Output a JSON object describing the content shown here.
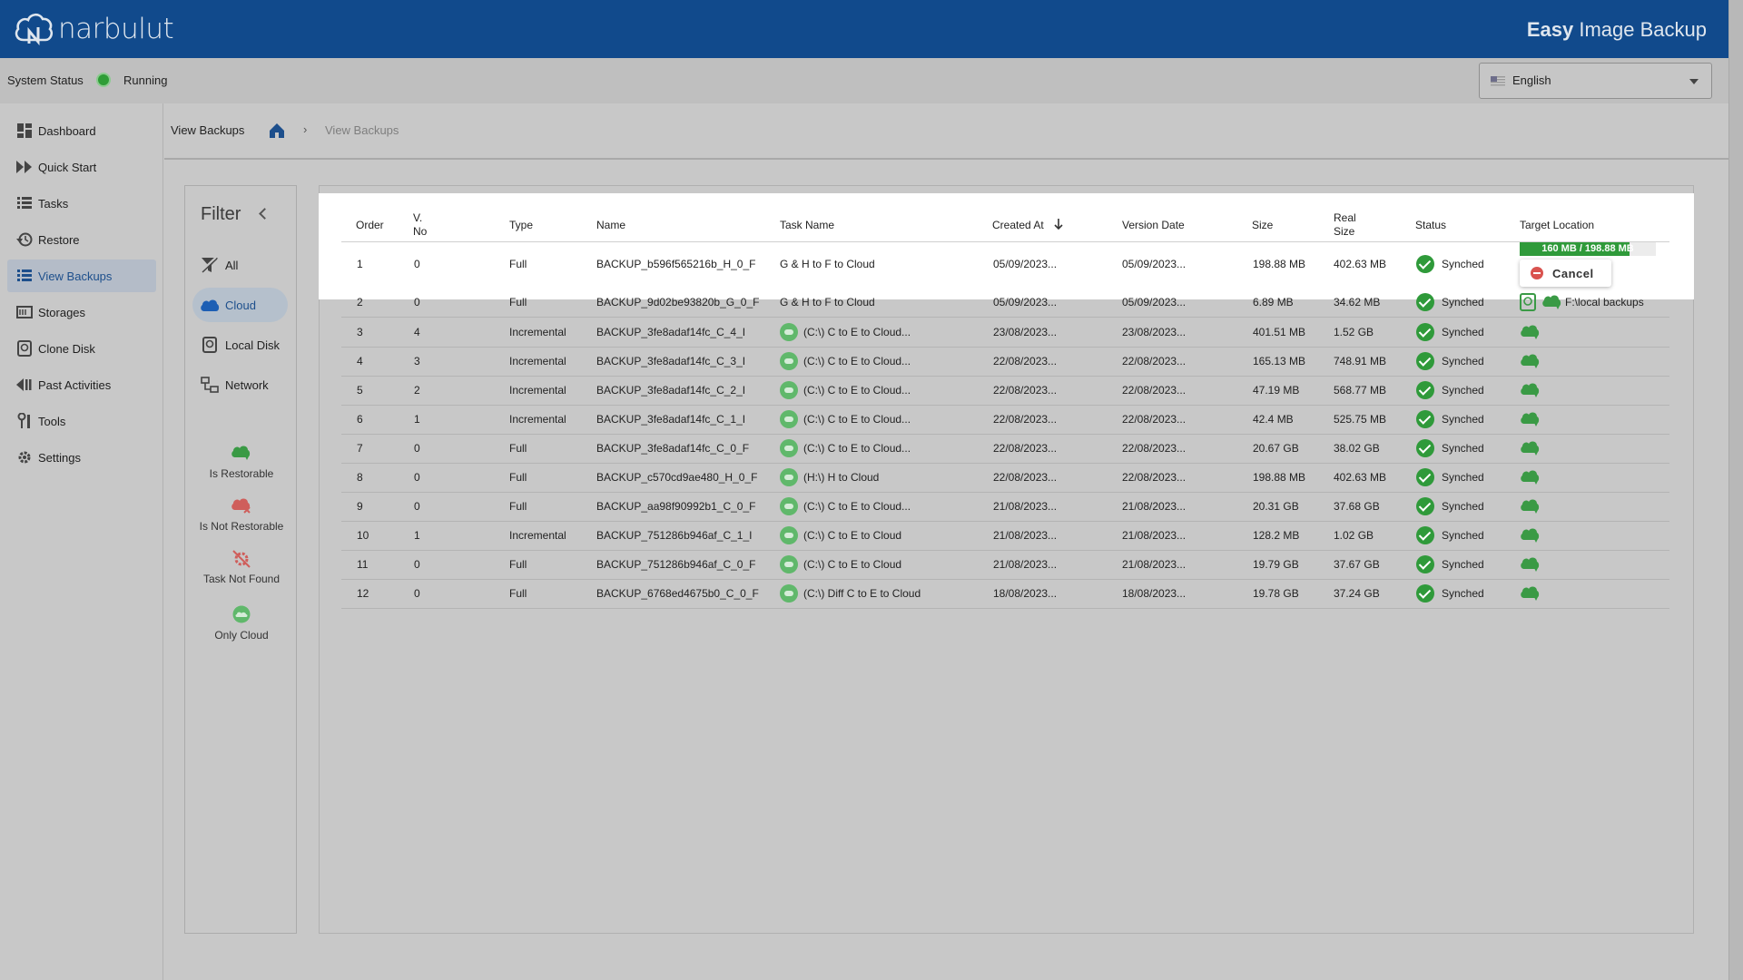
{
  "header": {
    "logo_text": "narbulut",
    "app_title_bold": "Easy",
    "app_title_rest": " Image Backup"
  },
  "status": {
    "label": "System Status",
    "value": "Running",
    "color": "#2e9d36"
  },
  "language": {
    "selected": "English"
  },
  "sidebar": {
    "items": [
      {
        "label": "Dashboard",
        "icon": "dashboard-icon"
      },
      {
        "label": "Quick Start",
        "icon": "fast-forward-icon"
      },
      {
        "label": "Tasks",
        "icon": "list-icon"
      },
      {
        "label": "Restore",
        "icon": "restore-icon"
      },
      {
        "label": "View Backups",
        "icon": "backups-list-icon"
      },
      {
        "label": "Storages",
        "icon": "storage-icon"
      },
      {
        "label": "Clone Disk",
        "icon": "disk-icon"
      },
      {
        "label": "Past Activities",
        "icon": "history-icon"
      },
      {
        "label": "Tools",
        "icon": "tools-icon"
      },
      {
        "label": "Settings",
        "icon": "gear-icon"
      }
    ],
    "active": "View Backups"
  },
  "breadcrumb": {
    "title": "View Backups",
    "separator": "›",
    "current": "View Backups"
  },
  "filter": {
    "title": "Filter",
    "items": [
      {
        "label": "All",
        "icon": "filter-off-icon"
      },
      {
        "label": "Cloud",
        "icon": "cloud-icon"
      },
      {
        "label": "Local Disk",
        "icon": "local-disk-icon"
      },
      {
        "label": "Network",
        "icon": "network-icon"
      }
    ],
    "active": "Cloud",
    "legend": [
      {
        "label": "Is Restorable",
        "icon": "cloud-restorable-icon"
      },
      {
        "label": "Is Not Restorable",
        "icon": "cloud-not-restorable-icon"
      },
      {
        "label": "Task Not Found",
        "icon": "task-not-found-icon"
      },
      {
        "label": "Only Cloud",
        "icon": "only-cloud-icon"
      }
    ]
  },
  "table": {
    "headers": {
      "order": "Order",
      "vno_1": "V.",
      "vno_2": "No",
      "type": "Type",
      "name": "Name",
      "task_name": "Task Name",
      "created_at": "Created At",
      "version_date": "Version Date",
      "size": "Size",
      "real_size_1": "Real",
      "real_size_2": "Size",
      "status": "Status",
      "target_location": "Target Location"
    },
    "rows": [
      {
        "order": "1",
        "vno": "0",
        "type": "Full",
        "name": "BACKUP_b596f565216b_H_0_F",
        "task": "G & H to F to Cloud",
        "created": "05/09/2023...",
        "version": "05/09/2023...",
        "size": "198.88 MB",
        "real_size": "402.63 MB",
        "status": "Synched"
      },
      {
        "order": "2",
        "vno": "0",
        "type": "Full",
        "name": "BACKUP_9d02be93820b_G_0_F",
        "task": "G & H to F to Cloud",
        "created": "05/09/2023...",
        "version": "05/09/2023...",
        "size": "6.89 MB",
        "real_size": "34.62 MB",
        "status": "Synched",
        "target": "F:\\local backups"
      },
      {
        "order": "3",
        "vno": "4",
        "type": "Incremental",
        "name": "BACKUP_3fe8adaf14fc_C_4_I",
        "task": "(C:\\) C to E to Cloud...",
        "created": "23/08/2023...",
        "version": "23/08/2023...",
        "size": "401.51 MB",
        "real_size": "1.52 GB",
        "status": "Synched"
      },
      {
        "order": "4",
        "vno": "3",
        "type": "Incremental",
        "name": "BACKUP_3fe8adaf14fc_C_3_I",
        "task": "(C:\\) C to E to Cloud...",
        "created": "22/08/2023...",
        "version": "22/08/2023...",
        "size": "165.13 MB",
        "real_size": "748.91 MB",
        "status": "Synched"
      },
      {
        "order": "5",
        "vno": "2",
        "type": "Incremental",
        "name": "BACKUP_3fe8adaf14fc_C_2_I",
        "task": "(C:\\) C to E to Cloud...",
        "created": "22/08/2023...",
        "version": "22/08/2023...",
        "size": "47.19 MB",
        "real_size": "568.77 MB",
        "status": "Synched"
      },
      {
        "order": "6",
        "vno": "1",
        "type": "Incremental",
        "name": "BACKUP_3fe8adaf14fc_C_1_I",
        "task": "(C:\\) C to E to Cloud...",
        "created": "22/08/2023...",
        "version": "22/08/2023...",
        "size": "42.4 MB",
        "real_size": "525.75 MB",
        "status": "Synched"
      },
      {
        "order": "7",
        "vno": "0",
        "type": "Full",
        "name": "BACKUP_3fe8adaf14fc_C_0_F",
        "task": "(C:\\) C to E to Cloud...",
        "created": "22/08/2023...",
        "version": "22/08/2023...",
        "size": "20.67 GB",
        "real_size": "38.02 GB",
        "status": "Synched"
      },
      {
        "order": "8",
        "vno": "0",
        "type": "Full",
        "name": "BACKUP_c570cd9ae480_H_0_F",
        "task": "(H:\\) H to Cloud",
        "created": "22/08/2023...",
        "version": "22/08/2023...",
        "size": "198.88 MB",
        "real_size": "402.63 MB",
        "status": "Synched"
      },
      {
        "order": "9",
        "vno": "0",
        "type": "Full",
        "name": "BACKUP_aa98f90992b1_C_0_F",
        "task": "(C:\\) C to E to Cloud...",
        "created": "21/08/2023...",
        "version": "21/08/2023...",
        "size": "20.31 GB",
        "real_size": "37.68 GB",
        "status": "Synched"
      },
      {
        "order": "10",
        "vno": "1",
        "type": "Incremental",
        "name": "BACKUP_751286b946af_C_1_I",
        "task": "(C:\\) C to E to Cloud",
        "created": "21/08/2023...",
        "version": "21/08/2023...",
        "size": "128.2 MB",
        "real_size": "1.02 GB",
        "status": "Synched"
      },
      {
        "order": "11",
        "vno": "0",
        "type": "Full",
        "name": "BACKUP_751286b946af_C_0_F",
        "task": "(C:\\) C to E to Cloud",
        "created": "21/08/2023...",
        "version": "21/08/2023...",
        "size": "19.79 GB",
        "real_size": "37.67 GB",
        "status": "Synched"
      },
      {
        "order": "12",
        "vno": "0",
        "type": "Full",
        "name": "BACKUP_6768ed4675b0_C_0_F",
        "task": "(C:\\) Diff C to E to Cloud",
        "created": "18/08/2023...",
        "version": "18/08/2023...",
        "size": "19.78 GB",
        "real_size": "37.24 GB",
        "status": "Synched"
      }
    ]
  },
  "upload": {
    "progress_text": "160 MB / 198.88 MB",
    "progress_fraction": 0.8045,
    "cancel_label": "Cancel"
  },
  "colors": {
    "brand": "#114a8c",
    "success": "#2f9a3a",
    "danger": "#d9534f"
  }
}
